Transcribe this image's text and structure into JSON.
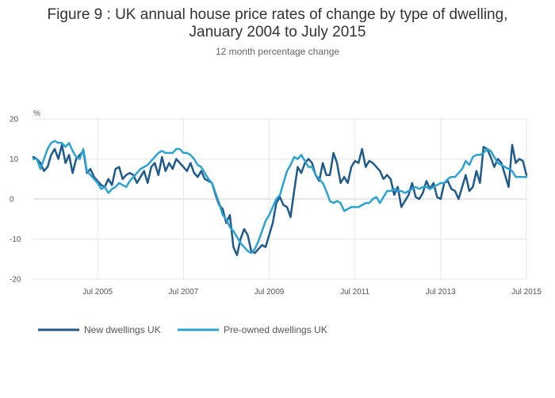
{
  "chart_data": {
    "type": "line",
    "title_line1": "Figure 9 : UK annual house price rates of change by type of dwelling,",
    "title_line2": "January 2004 to July 2015",
    "subtitle": "12 month percentage change",
    "ylabel": "%",
    "ylim": [
      -20,
      20
    ],
    "y_ticks": [
      20,
      10,
      0,
      -10,
      -20
    ],
    "x_start": "2004-01",
    "x_end": "2015-07",
    "x_ticks": [
      {
        "label": "Jul 2005",
        "date": "2005-07"
      },
      {
        "label": "Jul 2007",
        "date": "2007-07"
      },
      {
        "label": "Jul 2009",
        "date": "2009-07"
      },
      {
        "label": "Jul 2011",
        "date": "2011-07"
      },
      {
        "label": "Jul 2013",
        "date": "2013-07"
      },
      {
        "label": "Jul 2015",
        "date": "2015-07"
      }
    ],
    "grid": true,
    "legend_position": "bottom-left",
    "series": [
      {
        "name": "New dwellings UK",
        "color": "#1f5a8a",
        "points": [
          [
            "2004-01",
            10.5
          ],
          [
            "2004-02",
            10
          ],
          [
            "2004-03",
            9
          ],
          [
            "2004-04",
            7
          ],
          [
            "2004-05",
            8
          ],
          [
            "2004-06",
            11
          ],
          [
            "2004-07",
            12.5
          ],
          [
            "2004-08",
            10
          ],
          [
            "2004-09",
            13.5
          ],
          [
            "2004-10",
            9
          ],
          [
            "2004-11",
            11
          ],
          [
            "2004-12",
            6.5
          ],
          [
            "2005-01",
            10
          ],
          [
            "2005-02",
            11
          ],
          [
            "2005-03",
            12
          ],
          [
            "2005-04",
            6.5
          ],
          [
            "2005-05",
            7.5
          ],
          [
            "2005-06",
            5.5
          ],
          [
            "2005-07",
            4.5
          ],
          [
            "2005-08",
            3.5
          ],
          [
            "2005-09",
            3
          ],
          [
            "2005-10",
            5
          ],
          [
            "2005-11",
            3.5
          ],
          [
            "2005-12",
            7.5
          ],
          [
            "2006-01",
            8
          ],
          [
            "2006-02",
            5
          ],
          [
            "2006-03",
            6
          ],
          [
            "2006-04",
            6.5
          ],
          [
            "2006-05",
            6
          ],
          [
            "2006-06",
            4
          ],
          [
            "2006-07",
            5.5
          ],
          [
            "2006-08",
            7
          ],
          [
            "2006-09",
            4
          ],
          [
            "2006-10",
            8
          ],
          [
            "2006-11",
            9
          ],
          [
            "2006-12",
            6
          ],
          [
            "2007-01",
            10.5
          ],
          [
            "2007-02",
            7
          ],
          [
            "2007-03",
            9
          ],
          [
            "2007-04",
            7.5
          ],
          [
            "2007-05",
            10
          ],
          [
            "2007-06",
            9
          ],
          [
            "2007-07",
            8
          ],
          [
            "2007-08",
            7
          ],
          [
            "2007-09",
            9
          ],
          [
            "2007-10",
            6.5
          ],
          [
            "2007-11",
            5.5
          ],
          [
            "2007-12",
            7
          ],
          [
            "2008-01",
            5
          ],
          [
            "2008-02",
            4.5
          ],
          [
            "2008-03",
            4
          ],
          [
            "2008-04",
            1
          ],
          [
            "2008-05",
            -1.5
          ],
          [
            "2008-06",
            -2.5
          ],
          [
            "2008-07",
            -6
          ],
          [
            "2008-08",
            -4
          ],
          [
            "2008-09",
            -12
          ],
          [
            "2008-10",
            -14
          ],
          [
            "2008-11",
            -10
          ],
          [
            "2008-12",
            -7.5
          ],
          [
            "2009-01",
            -9
          ],
          [
            "2009-02",
            -13
          ],
          [
            "2009-03",
            -13.5
          ],
          [
            "2009-04",
            -12.5
          ],
          [
            "2009-05",
            -11.5
          ],
          [
            "2009-06",
            -12
          ],
          [
            "2009-07",
            -9
          ],
          [
            "2009-08",
            -6
          ],
          [
            "2009-09",
            -1
          ],
          [
            "2009-10",
            0.5
          ],
          [
            "2009-11",
            -1.5
          ],
          [
            "2009-12",
            -2
          ],
          [
            "2010-01",
            -4.5
          ],
          [
            "2010-02",
            2
          ],
          [
            "2010-03",
            8
          ],
          [
            "2010-04",
            6.5
          ],
          [
            "2010-05",
            9
          ],
          [
            "2010-06",
            10
          ],
          [
            "2010-07",
            9
          ],
          [
            "2010-08",
            6
          ],
          [
            "2010-09",
            4.5
          ],
          [
            "2010-10",
            9
          ],
          [
            "2010-11",
            6
          ],
          [
            "2010-12",
            6
          ],
          [
            "2011-01",
            11.5
          ],
          [
            "2011-02",
            9
          ],
          [
            "2011-03",
            4
          ],
          [
            "2011-04",
            5.5
          ],
          [
            "2011-05",
            4
          ],
          [
            "2011-06",
            8
          ],
          [
            "2011-07",
            9.5
          ],
          [
            "2011-08",
            9
          ],
          [
            "2011-09",
            12.5
          ],
          [
            "2011-10",
            8
          ],
          [
            "2011-11",
            9.5
          ],
          [
            "2011-12",
            9
          ],
          [
            "2012-01",
            8
          ],
          [
            "2012-02",
            7
          ],
          [
            "2012-03",
            5
          ],
          [
            "2012-04",
            6
          ],
          [
            "2012-05",
            5
          ],
          [
            "2012-06",
            1
          ],
          [
            "2012-07",
            3
          ],
          [
            "2012-08",
            -2
          ],
          [
            "2012-09",
            -0.5
          ],
          [
            "2012-10",
            1
          ],
          [
            "2012-11",
            4
          ],
          [
            "2012-12",
            0.5
          ],
          [
            "2013-01",
            0
          ],
          [
            "2013-02",
            1.5
          ],
          [
            "2013-03",
            4.5
          ],
          [
            "2013-04",
            2.5
          ],
          [
            "2013-05",
            4
          ],
          [
            "2013-06",
            0.5
          ],
          [
            "2013-07",
            0
          ],
          [
            "2013-08",
            4
          ],
          [
            "2013-09",
            4.5
          ],
          [
            "2013-10",
            2.5
          ],
          [
            "2013-11",
            2
          ],
          [
            "2013-12",
            0
          ],
          [
            "2014-01",
            3
          ],
          [
            "2014-02",
            6
          ],
          [
            "2014-03",
            2
          ],
          [
            "2014-04",
            3
          ],
          [
            "2014-05",
            7
          ],
          [
            "2014-06",
            4
          ],
          [
            "2014-07",
            13
          ],
          [
            "2014-08",
            12.5
          ],
          [
            "2014-09",
            10.5
          ],
          [
            "2014-10",
            8
          ],
          [
            "2014-11",
            10
          ],
          [
            "2014-12",
            9
          ],
          [
            "2015-01",
            6
          ],
          [
            "2015-02",
            3
          ],
          [
            "2015-03",
            13.5
          ],
          [
            "2015-04",
            9
          ],
          [
            "2015-05",
            10
          ],
          [
            "2015-06",
            9.5
          ],
          [
            "2015-07",
            6
          ]
        ]
      },
      {
        "name": "Pre-owned dwellings UK",
        "color": "#2da2d1",
        "points": [
          [
            "2004-01",
            10
          ],
          [
            "2004-02",
            10
          ],
          [
            "2004-03",
            7.5
          ],
          [
            "2004-04",
            10
          ],
          [
            "2004-05",
            12.5
          ],
          [
            "2004-06",
            14
          ],
          [
            "2004-07",
            14.5
          ],
          [
            "2004-08",
            14
          ],
          [
            "2004-09",
            14
          ],
          [
            "2004-10",
            13
          ],
          [
            "2004-11",
            14
          ],
          [
            "2004-12",
            12
          ],
          [
            "2005-01",
            10.5
          ],
          [
            "2005-02",
            10
          ],
          [
            "2005-03",
            12.5
          ],
          [
            "2005-04",
            7
          ],
          [
            "2005-05",
            6
          ],
          [
            "2005-06",
            5
          ],
          [
            "2005-07",
            4
          ],
          [
            "2005-08",
            2.5
          ],
          [
            "2005-09",
            3
          ],
          [
            "2005-10",
            1.5
          ],
          [
            "2005-11",
            2.5
          ],
          [
            "2005-12",
            3
          ],
          [
            "2006-01",
            4
          ],
          [
            "2006-02",
            3.5
          ],
          [
            "2006-03",
            3
          ],
          [
            "2006-04",
            4.5
          ],
          [
            "2006-05",
            5.5
          ],
          [
            "2006-06",
            6.5
          ],
          [
            "2006-07",
            7.5
          ],
          [
            "2006-08",
            8
          ],
          [
            "2006-09",
            8.5
          ],
          [
            "2006-10",
            9.5
          ],
          [
            "2006-11",
            10.5
          ],
          [
            "2006-12",
            11.5
          ],
          [
            "2007-01",
            12
          ],
          [
            "2007-02",
            11.5
          ],
          [
            "2007-03",
            11.5
          ],
          [
            "2007-04",
            11.5
          ],
          [
            "2007-05",
            12.5
          ],
          [
            "2007-06",
            12.5
          ],
          [
            "2007-07",
            11.5
          ],
          [
            "2007-08",
            11.5
          ],
          [
            "2007-09",
            11
          ],
          [
            "2007-10",
            10
          ],
          [
            "2007-11",
            8.5
          ],
          [
            "2007-12",
            8
          ],
          [
            "2008-01",
            6.5
          ],
          [
            "2008-02",
            5
          ],
          [
            "2008-03",
            4
          ],
          [
            "2008-04",
            1.5
          ],
          [
            "2008-05",
            -1
          ],
          [
            "2008-06",
            -4
          ],
          [
            "2008-07",
            -5
          ],
          [
            "2008-08",
            -7
          ],
          [
            "2008-09",
            -8
          ],
          [
            "2008-10",
            -9.5
          ],
          [
            "2008-11",
            -11
          ],
          [
            "2008-12",
            -12
          ],
          [
            "2009-01",
            -13
          ],
          [
            "2009-02",
            -13.5
          ],
          [
            "2009-03",
            -12.5
          ],
          [
            "2009-04",
            -10.5
          ],
          [
            "2009-05",
            -8
          ],
          [
            "2009-06",
            -5.5
          ],
          [
            "2009-07",
            -4
          ],
          [
            "2009-08",
            -2
          ],
          [
            "2009-09",
            0
          ],
          [
            "2009-10",
            1
          ],
          [
            "2009-11",
            4
          ],
          [
            "2009-12",
            7
          ],
          [
            "2010-01",
            8.5
          ],
          [
            "2010-02",
            10.5
          ],
          [
            "2010-03",
            10
          ],
          [
            "2010-04",
            11
          ],
          [
            "2010-05",
            9.5
          ],
          [
            "2010-06",
            8
          ],
          [
            "2010-07",
            8
          ],
          [
            "2010-08",
            6
          ],
          [
            "2010-09",
            5
          ],
          [
            "2010-10",
            4
          ],
          [
            "2010-11",
            2
          ],
          [
            "2010-12",
            -0.5
          ],
          [
            "2011-01",
            -1
          ],
          [
            "2011-02",
            -0.5
          ],
          [
            "2011-03",
            -1
          ],
          [
            "2011-04",
            -3
          ],
          [
            "2011-05",
            -2.5
          ],
          [
            "2011-06",
            -2
          ],
          [
            "2011-07",
            -2
          ],
          [
            "2011-08",
            -2
          ],
          [
            "2011-09",
            -1.5
          ],
          [
            "2011-10",
            -1
          ],
          [
            "2011-11",
            -1
          ],
          [
            "2011-12",
            0
          ],
          [
            "2012-01",
            0.5
          ],
          [
            "2012-02",
            -1
          ],
          [
            "2012-03",
            0.5
          ],
          [
            "2012-04",
            2
          ],
          [
            "2012-05",
            2
          ],
          [
            "2012-06",
            2.5
          ],
          [
            "2012-07",
            2
          ],
          [
            "2012-08",
            2
          ],
          [
            "2012-09",
            1.5
          ],
          [
            "2012-10",
            2
          ],
          [
            "2012-11",
            2.5
          ],
          [
            "2012-12",
            3
          ],
          [
            "2013-01",
            2.5
          ],
          [
            "2013-02",
            3
          ],
          [
            "2013-03",
            3
          ],
          [
            "2013-04",
            2.5
          ],
          [
            "2013-05",
            3
          ],
          [
            "2013-06",
            3.5
          ],
          [
            "2013-07",
            4
          ],
          [
            "2013-08",
            4
          ],
          [
            "2013-09",
            5
          ],
          [
            "2013-10",
            5.5
          ],
          [
            "2013-11",
            5.5
          ],
          [
            "2013-12",
            6.5
          ],
          [
            "2014-01",
            7.5
          ],
          [
            "2014-02",
            9.5
          ],
          [
            "2014-03",
            8.5
          ],
          [
            "2014-04",
            10.5
          ],
          [
            "2014-05",
            11
          ],
          [
            "2014-06",
            11
          ],
          [
            "2014-07",
            11.5
          ],
          [
            "2014-08",
            12.5
          ],
          [
            "2014-09",
            12
          ],
          [
            "2014-10",
            10.5
          ],
          [
            "2014-11",
            9
          ],
          [
            "2014-12",
            8.5
          ],
          [
            "2015-01",
            8
          ],
          [
            "2015-02",
            7.5
          ],
          [
            "2015-03",
            7
          ],
          [
            "2015-04",
            5.5
          ],
          [
            "2015-05",
            5.5
          ],
          [
            "2015-06",
            5.5
          ],
          [
            "2015-07",
            5.5
          ]
        ]
      }
    ]
  }
}
